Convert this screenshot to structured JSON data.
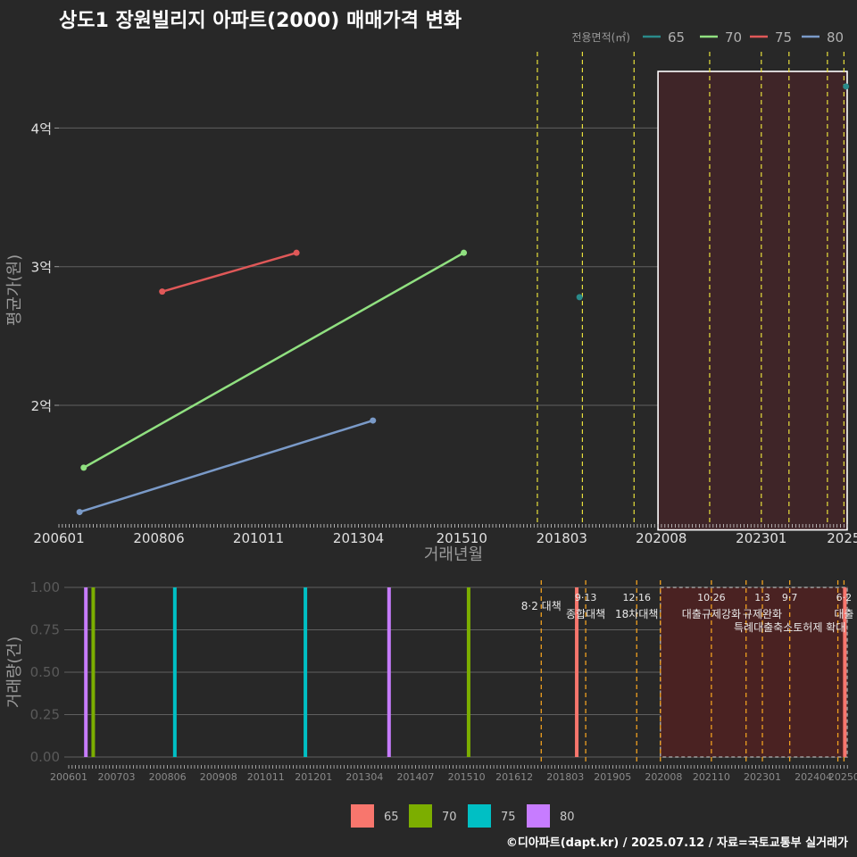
{
  "title": "상도1 장원빌리지 아파트(2000) 매매가격 변화",
  "footer": "©디아파트(dapt.kr) / 2025.07.12 / 자료=국토교통부 실거래가",
  "colors": {
    "background": "#282828",
    "grid": "#5f5f5f",
    "text": "#ffffff",
    "muted": "#9a9a9a",
    "policy_top": "#e8e03c",
    "policy_bottom": "#f0a020",
    "shade_top": "#3f2528",
    "shade_bottom": "#4a2222",
    "box": "#ffffff",
    "box_bottom": "#a0a0a0"
  },
  "chart_data": [
    {
      "type": "line",
      "title": "상도1 장원빌리지 아파트(2000) 매매가격 변화",
      "xlabel": "거래년월",
      "ylabel": "평균가(원)",
      "x_range": [
        2006.0,
        2025.1
      ],
      "ylim": [
        1.15,
        4.55
      ],
      "y_ticks": [
        {
          "value": 2,
          "label": "2억"
        },
        {
          "value": 3,
          "label": "3억"
        },
        {
          "value": 4,
          "label": "4억"
        }
      ],
      "x_ticks": [
        {
          "value": 2006.0,
          "label": "200601"
        },
        {
          "value": 2008.42,
          "label": "200806"
        },
        {
          "value": 2010.83,
          "label": "201011"
        },
        {
          "value": 2013.25,
          "label": "201304"
        },
        {
          "value": 2015.75,
          "label": "201510"
        },
        {
          "value": 2018.17,
          "label": "201803"
        },
        {
          "value": 2020.58,
          "label": "202008"
        },
        {
          "value": 2023.0,
          "label": "202301"
        },
        {
          "value": 2025.0,
          "label": "2025"
        }
      ],
      "legend_title": "전용면적(㎡)",
      "legend_position": "top-right",
      "series": [
        {
          "name": "65",
          "color": "#2a8a8a",
          "points": [
            {
              "x": 2018.6,
              "y": 2.78
            },
            {
              "x": 2025.05,
              "y": 4.3
            }
          ]
        },
        {
          "name": "70",
          "color": "#90e080",
          "points": [
            {
              "x": 2006.6,
              "y": 1.55
            },
            {
              "x": 2015.8,
              "y": 3.1
            }
          ]
        },
        {
          "name": "75",
          "color": "#e05858",
          "points": [
            {
              "x": 2008.5,
              "y": 2.82
            },
            {
              "x": 2011.75,
              "y": 3.1
            }
          ]
        },
        {
          "name": "80",
          "color": "#7a9ac8",
          "points": [
            {
              "x": 2006.5,
              "y": 1.23
            },
            {
              "x": 2013.6,
              "y": 1.89
            }
          ]
        }
      ],
      "policy_lines": [
        2017.58,
        2018.67,
        2019.92,
        2021.75,
        2023.0,
        2023.67,
        2024.6,
        2025.0
      ],
      "highlight_range": [
        2020.5,
        2025.1
      ]
    },
    {
      "type": "bar",
      "ylabel": "거래량(건)",
      "x_range": [
        2006.0,
        2025.1
      ],
      "ylim": [
        0,
        1.0
      ],
      "y_ticks": [
        {
          "value": 0,
          "label": "0.00"
        },
        {
          "value": 0.25,
          "label": "0.25"
        },
        {
          "value": 0.5,
          "label": "0.50"
        },
        {
          "value": 0.75,
          "label": "0.75"
        },
        {
          "value": 1.0,
          "label": "1.00"
        }
      ],
      "x_ticks": [
        {
          "value": 2006.0,
          "label": "200601"
        },
        {
          "value": 2007.17,
          "label": "200703"
        },
        {
          "value": 2008.42,
          "label": "200806"
        },
        {
          "value": 2009.67,
          "label": "200908"
        },
        {
          "value": 2010.83,
          "label": "201011"
        },
        {
          "value": 2012.0,
          "label": "201201"
        },
        {
          "value": 2013.25,
          "label": "201304"
        },
        {
          "value": 2014.5,
          "label": "201407"
        },
        {
          "value": 2015.75,
          "label": "201510"
        },
        {
          "value": 2016.92,
          "label": "201612"
        },
        {
          "value": 2018.17,
          "label": "201803"
        },
        {
          "value": 2019.33,
          "label": "201905"
        },
        {
          "value": 2020.58,
          "label": "202008"
        },
        {
          "value": 2021.75,
          "label": "202110"
        },
        {
          "value": 2023.0,
          "label": "202301"
        },
        {
          "value": 2024.25,
          "label": "202404"
        },
        {
          "value": 2025.0,
          "label": "20250"
        }
      ],
      "legend_position": "bottom",
      "series": [
        {
          "name": "65",
          "color": "#f8766d",
          "bars": [
            {
              "x": 2018.45,
              "y": 1
            },
            {
              "x": 2025.02,
              "y": 1
            }
          ]
        },
        {
          "name": "70",
          "color": "#7cae00",
          "bars": [
            {
              "x": 2006.6,
              "y": 1
            },
            {
              "x": 2015.8,
              "y": 1
            }
          ]
        },
        {
          "name": "75",
          "color": "#00bfc4",
          "bars": [
            {
              "x": 2008.6,
              "y": 1
            },
            {
              "x": 2011.8,
              "y": 1
            }
          ]
        },
        {
          "name": "80",
          "color": "#c77cff",
          "bars": [
            {
              "x": 2006.42,
              "y": 1
            },
            {
              "x": 2013.85,
              "y": 1
            }
          ]
        }
      ],
      "policy_lines": [
        2017.58,
        2018.67,
        2019.92,
        2020.5,
        2021.75,
        2022.6,
        2023.0,
        2023.67,
        2024.85,
        2025.0
      ],
      "annotations": [
        {
          "x": 2017.58,
          "date": "",
          "label": "8·2 대책"
        },
        {
          "x": 2018.67,
          "date": "9·13",
          "label": "종합대책"
        },
        {
          "x": 2019.92,
          "date": "12·16",
          "label": "18차대책"
        },
        {
          "x": 2021.75,
          "date": "10·26",
          "label": "대출규제강화"
        },
        {
          "x": 2023.0,
          "date": "1·3",
          "label": "규제완화"
        },
        {
          "x": 2023.67,
          "date": "9·7",
          "label": "특례대출축소토허제 확대"
        },
        {
          "x": 2025.0,
          "date": "6·2",
          "label": "대출"
        }
      ],
      "highlight_range": [
        2020.5,
        2025.1
      ]
    }
  ]
}
